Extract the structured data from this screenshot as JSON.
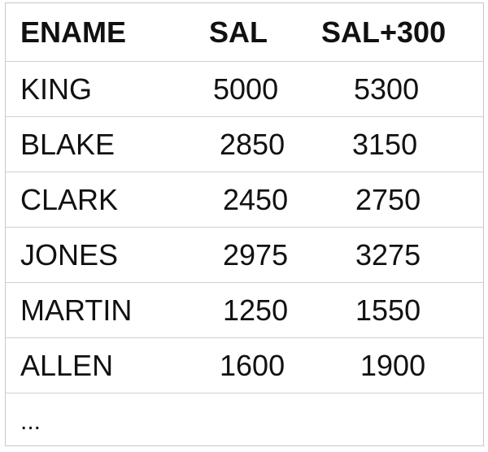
{
  "table": {
    "headers": [
      "ENAME",
      "SAL",
      "SAL+300"
    ],
    "rows": [
      [
        "KING",
        "5000",
        "5300"
      ],
      [
        "BLAKE",
        "2850",
        "3150"
      ],
      [
        "CLARK",
        "2450",
        "2750"
      ],
      [
        "JONES",
        "2975",
        "3275"
      ],
      [
        "MARTIN",
        "1250",
        "1550"
      ],
      [
        "ALLEN",
        "1600",
        "1900"
      ]
    ],
    "continuation": "..."
  }
}
